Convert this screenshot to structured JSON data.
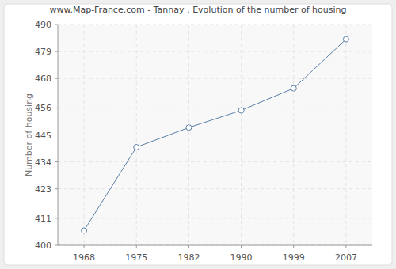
{
  "chart_data": {
    "type": "line",
    "title": "www.Map-France.com - Tannay : Evolution of the number of housing",
    "y_label": "Number of housing",
    "categories": [
      "1968",
      "1975",
      "1982",
      "1990",
      "1999",
      "2007"
    ],
    "values": [
      406,
      440,
      448,
      455,
      464,
      484
    ],
    "color": "#5a7fa8",
    "marker": "circle",
    "grid": true,
    "ylim": [
      400,
      490
    ],
    "yticks": [
      400,
      411,
      423,
      434,
      445,
      456,
      468,
      479,
      490
    ]
  }
}
